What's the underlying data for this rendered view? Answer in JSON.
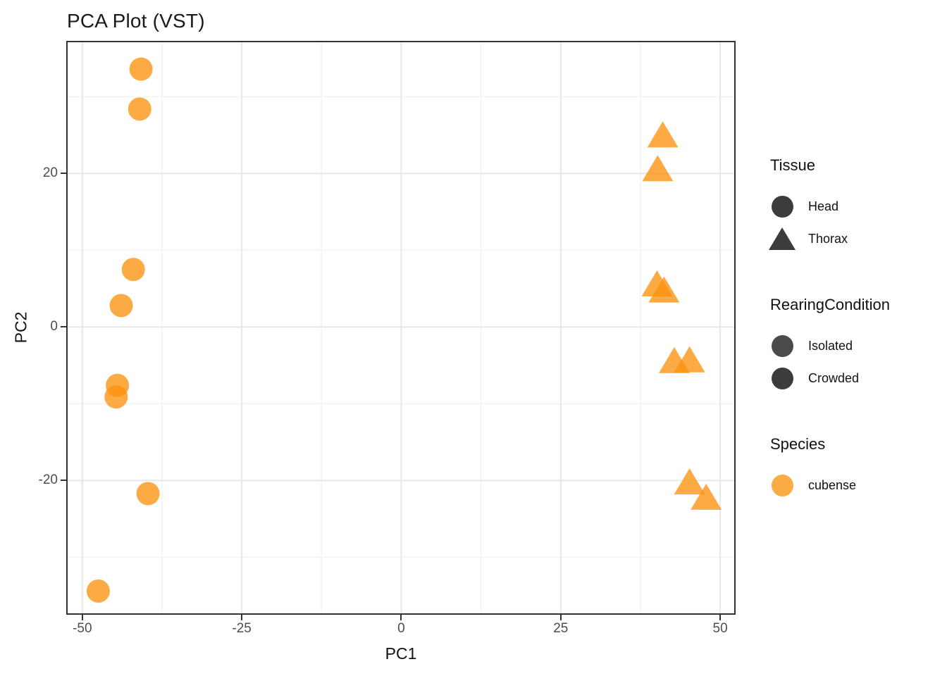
{
  "title": "PCA Plot (VST)",
  "axes": {
    "x": {
      "label": "PC1",
      "min": -52.3,
      "max": 52.2,
      "major_ticks": [
        {
          "value": -50,
          "label": "-50"
        },
        {
          "value": -25,
          "label": "-25"
        },
        {
          "value": 0,
          "label": "0"
        },
        {
          "value": 25,
          "label": "25"
        },
        {
          "value": 50,
          "label": "50"
        }
      ],
      "minor_ticks": [
        -37.5,
        -12.5,
        12.5,
        37.5
      ]
    },
    "y": {
      "label": "PC2",
      "min": -37.3,
      "max": 37.1,
      "major_ticks": [
        {
          "value": 20,
          "label": "20"
        },
        {
          "value": 0,
          "label": "0"
        },
        {
          "value": -20,
          "label": "-20"
        }
      ],
      "minor_ticks": [
        30,
        10,
        -10,
        -30
      ]
    }
  },
  "chart_data": {
    "type": "scatter",
    "title": "PCA Plot (VST)",
    "xlabel": "PC1",
    "ylabel": "PC2",
    "xlim": [
      -52.3,
      52.2
    ],
    "ylim": [
      -37.3,
      37.1
    ],
    "grid": true,
    "legend_position": "right",
    "marker_color": "#FB920E",
    "marker_opacity": 0.78,
    "species": "cubense",
    "series": [
      {
        "name": "Head",
        "marker": "circle",
        "points": [
          {
            "x": -40.8,
            "y": 33.6
          },
          {
            "x": -41.0,
            "y": 28.4
          },
          {
            "x": -42.0,
            "y": 7.5
          },
          {
            "x": -43.9,
            "y": 2.8
          },
          {
            "x": -44.5,
            "y": -7.6
          },
          {
            "x": -44.7,
            "y": -9.1
          },
          {
            "x": -39.7,
            "y": -21.7
          },
          {
            "x": -47.5,
            "y": -34.4
          }
        ]
      },
      {
        "name": "Thorax",
        "marker": "triangle",
        "points": [
          {
            "x": 41.0,
            "y": 25.0
          },
          {
            "x": 40.2,
            "y": 20.6
          },
          {
            "x": 40.1,
            "y": 5.6
          },
          {
            "x": 41.2,
            "y": 4.8
          },
          {
            "x": 42.8,
            "y": -4.4
          },
          {
            "x": 45.2,
            "y": -4.3
          },
          {
            "x": 45.2,
            "y": -20.2
          },
          {
            "x": 47.8,
            "y": -22.2
          }
        ]
      }
    ]
  },
  "legend": {
    "groups": [
      {
        "title": "Tissue",
        "items": [
          {
            "label": "Head",
            "marker": "circle",
            "color": "#3C3C3C",
            "opacity": 1
          },
          {
            "label": "Thorax",
            "marker": "triangle",
            "color": "#3C3C3C",
            "opacity": 1
          }
        ]
      },
      {
        "title": "RearingCondition",
        "items": [
          {
            "label": "Isolated",
            "marker": "circle",
            "color": "#3C3C3C",
            "opacity": 0.92
          },
          {
            "label": "Crowded",
            "marker": "circle",
            "color": "#3C3C3C",
            "opacity": 1
          }
        ]
      },
      {
        "title": "Species",
        "items": [
          {
            "label": "cubense",
            "marker": "circle",
            "color": "#FB920E",
            "opacity": 0.78
          }
        ]
      }
    ]
  },
  "colors": {
    "point_orange": "#FB920E",
    "legend_dark": "#3C3C3C",
    "panel_border": "#333333",
    "grid_major": "#E7E7E7",
    "grid_minor": "#F2F2F2",
    "tick_text": "#4D4D4D",
    "text": "#111111"
  }
}
